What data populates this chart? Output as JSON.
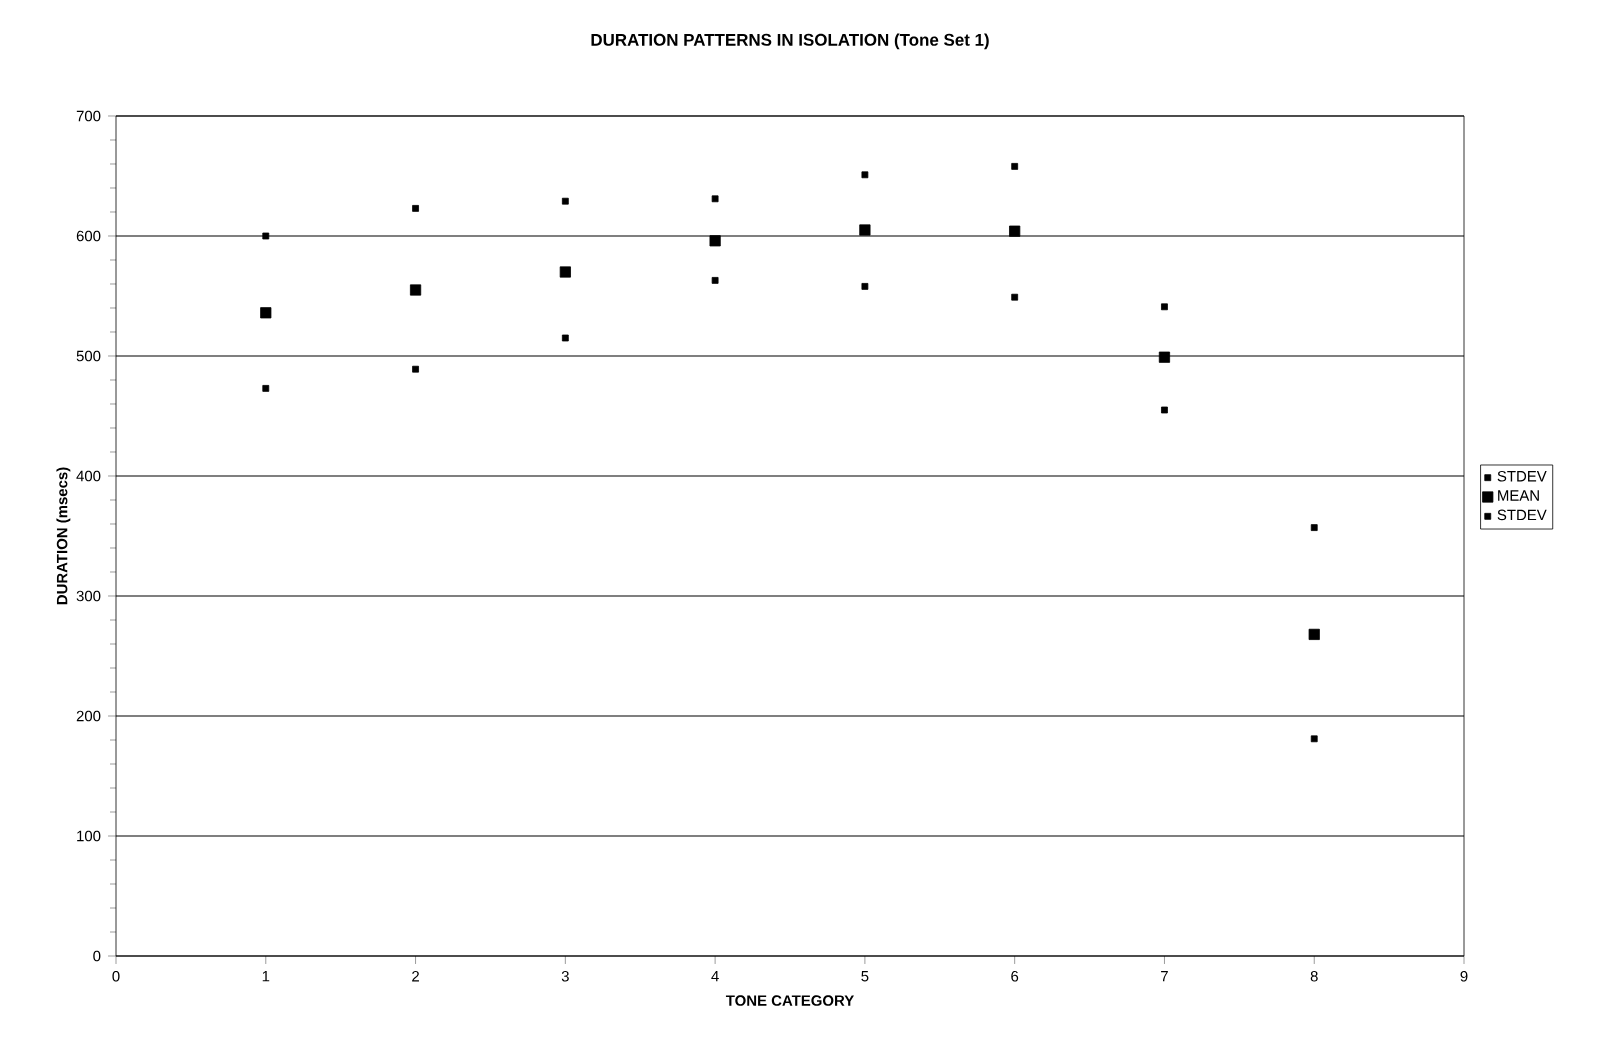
{
  "chart_data": {
    "type": "scatter",
    "title": "DURATION PATTERNS IN ISOLATION (Tone Set 1)",
    "xlabel": "TONE CATEGORY",
    "ylabel": "DURATION (msecs)",
    "x": [
      1,
      2,
      3,
      4,
      5,
      6,
      7,
      8
    ],
    "series": [
      {
        "name": "STDEV",
        "color": "#000000",
        "marker": "square",
        "values": [
          600,
          623,
          629,
          631,
          651,
          658,
          541,
          357
        ]
      },
      {
        "name": "MEAN",
        "color": "#000000",
        "marker": "square",
        "values": [
          536,
          555,
          570,
          596,
          605,
          604,
          499,
          268
        ]
      },
      {
        "name": "STDEV",
        "color": "#000000",
        "marker": "square",
        "values": [
          473,
          489,
          515,
          563,
          558,
          549,
          455,
          181
        ]
      }
    ],
    "xlim": [
      0,
      9
    ],
    "xticks": [
      0,
      1,
      2,
      3,
      4,
      5,
      6,
      7,
      8,
      9
    ],
    "ylim": [
      0,
      700
    ],
    "yticks": [
      0,
      100,
      200,
      300,
      400,
      500,
      600,
      700
    ],
    "grid": "y",
    "legend": "right"
  }
}
